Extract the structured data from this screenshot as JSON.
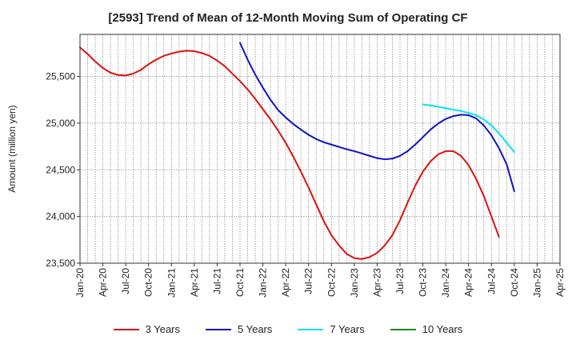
{
  "chart_data": {
    "type": "line",
    "title": "[2593]  Trend of Mean of 12-Month Moving Sum of Operating CF",
    "xlabel": "",
    "ylabel": "Amount (million yen)",
    "ylim": [
      23500,
      25950
    ],
    "yticks": [
      23500,
      24000,
      24500,
      25000,
      25500
    ],
    "ytick_labels": [
      "23,500",
      "24,000",
      "24,500",
      "25,000",
      "25,500"
    ],
    "xlim": [
      0,
      63
    ],
    "xticks": [
      0,
      3,
      6,
      9,
      12,
      15,
      18,
      21,
      24,
      27,
      30,
      33,
      36,
      39,
      42,
      45,
      48,
      51,
      54,
      57,
      60,
      63
    ],
    "xtick_labels": [
      "Jan-20",
      "Apr-20",
      "Jul-20",
      "Oct-20",
      "Jan-21",
      "Apr-21",
      "Jul-21",
      "Oct-21",
      "Jan-22",
      "Apr-22",
      "Jul-22",
      "Oct-22",
      "Jan-23",
      "Apr-23",
      "Jul-23",
      "Oct-23",
      "Jan-24",
      "Apr-24",
      "Jul-24",
      "Oct-24",
      "Jan-25",
      "Apr-25"
    ],
    "grid": true,
    "legend_position": "bottom",
    "series": [
      {
        "name": "3 Years",
        "color": "#e01010",
        "points": [
          [
            0,
            25810
          ],
          [
            1,
            25740
          ],
          [
            2,
            25660
          ],
          [
            3,
            25590
          ],
          [
            4,
            25540
          ],
          [
            5,
            25515
          ],
          [
            6,
            25510
          ],
          [
            7,
            25530
          ],
          [
            8,
            25570
          ],
          [
            9,
            25630
          ],
          [
            10,
            25680
          ],
          [
            11,
            25720
          ],
          [
            12,
            25745
          ],
          [
            13,
            25765
          ],
          [
            14,
            25775
          ],
          [
            15,
            25770
          ],
          [
            16,
            25750
          ],
          [
            17,
            25720
          ],
          [
            18,
            25670
          ],
          [
            19,
            25610
          ],
          [
            20,
            25530
          ],
          [
            21,
            25450
          ],
          [
            22,
            25360
          ],
          [
            23,
            25260
          ],
          [
            24,
            25150
          ],
          [
            25,
            25040
          ],
          [
            26,
            24920
          ],
          [
            27,
            24790
          ],
          [
            28,
            24640
          ],
          [
            29,
            24480
          ],
          [
            30,
            24310
          ],
          [
            31,
            24130
          ],
          [
            32,
            23950
          ],
          [
            33,
            23800
          ],
          [
            34,
            23690
          ],
          [
            35,
            23600
          ],
          [
            36,
            23555
          ],
          [
            37,
            23545
          ],
          [
            38,
            23565
          ],
          [
            39,
            23610
          ],
          [
            40,
            23690
          ],
          [
            41,
            23800
          ],
          [
            42,
            23960
          ],
          [
            43,
            24150
          ],
          [
            44,
            24330
          ],
          [
            45,
            24480
          ],
          [
            46,
            24590
          ],
          [
            47,
            24665
          ],
          [
            48,
            24700
          ],
          [
            49,
            24700
          ],
          [
            50,
            24650
          ],
          [
            51,
            24550
          ],
          [
            52,
            24400
          ],
          [
            53,
            24220
          ],
          [
            54,
            24000
          ],
          [
            55,
            23780
          ]
        ]
      },
      {
        "name": "5 Years",
        "color": "#1010cc",
        "points": [
          [
            21,
            25860
          ],
          [
            22,
            25680
          ],
          [
            23,
            25520
          ],
          [
            24,
            25380
          ],
          [
            25,
            25250
          ],
          [
            26,
            25140
          ],
          [
            27,
            25060
          ],
          [
            28,
            24990
          ],
          [
            29,
            24930
          ],
          [
            30,
            24875
          ],
          [
            31,
            24830
          ],
          [
            32,
            24795
          ],
          [
            33,
            24770
          ],
          [
            34,
            24745
          ],
          [
            35,
            24720
          ],
          [
            36,
            24700
          ],
          [
            37,
            24675
          ],
          [
            38,
            24650
          ],
          [
            39,
            24625
          ],
          [
            40,
            24612
          ],
          [
            41,
            24620
          ],
          [
            42,
            24650
          ],
          [
            43,
            24700
          ],
          [
            44,
            24770
          ],
          [
            45,
            24850
          ],
          [
            46,
            24930
          ],
          [
            47,
            24995
          ],
          [
            48,
            25045
          ],
          [
            49,
            25075
          ],
          [
            50,
            25090
          ],
          [
            51,
            25085
          ],
          [
            52,
            25050
          ],
          [
            53,
            24975
          ],
          [
            54,
            24870
          ],
          [
            55,
            24730
          ],
          [
            56,
            24560
          ],
          [
            57,
            24270
          ]
        ]
      },
      {
        "name": "7 Years",
        "color": "#00e5ee",
        "points": [
          [
            45,
            25200
          ],
          [
            46,
            25190
          ],
          [
            47,
            25175
          ],
          [
            48,
            25160
          ],
          [
            49,
            25145
          ],
          [
            50,
            25130
          ],
          [
            51,
            25110
          ],
          [
            52,
            25085
          ],
          [
            53,
            25040
          ],
          [
            54,
            24975
          ],
          [
            55,
            24890
          ],
          [
            56,
            24790
          ],
          [
            57,
            24690
          ]
        ]
      },
      {
        "name": "10 Years",
        "color": "#1a8a1a",
        "points": []
      }
    ]
  }
}
